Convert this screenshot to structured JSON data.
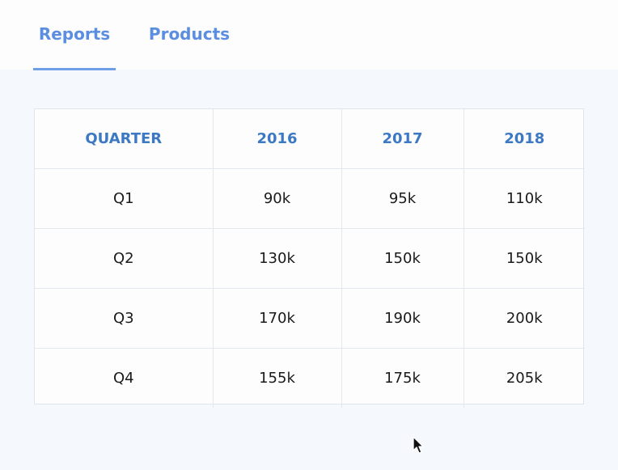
{
  "tabs": [
    {
      "label": "Reports",
      "active": true
    },
    {
      "label": "Products",
      "active": false
    }
  ],
  "table": {
    "headers": [
      "QUARTER",
      "2016",
      "2017",
      "2018"
    ],
    "rows": [
      [
        "Q1",
        "90k",
        "95k",
        "110k"
      ],
      [
        "Q2",
        "130k",
        "150k",
        "150k"
      ],
      [
        "Q3",
        "170k",
        "190k",
        "200k"
      ],
      [
        "Q4",
        "155k",
        "175k",
        "205k"
      ]
    ]
  },
  "colors": {
    "accent": "#5b8ee0",
    "header_text": "#3d78c2",
    "page_background": "#f5f8fd"
  },
  "icons": {
    "cursor": "mouse-pointer-icon"
  }
}
